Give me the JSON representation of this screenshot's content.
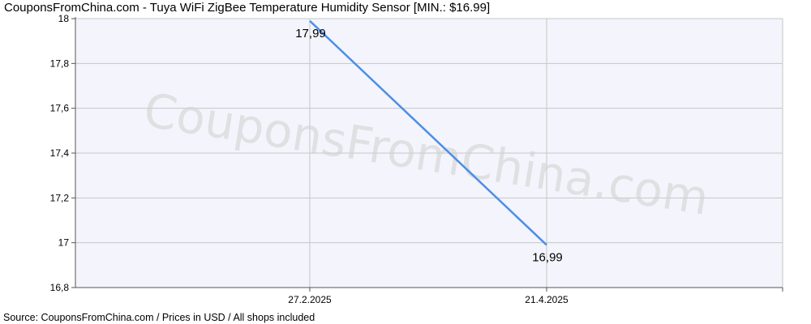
{
  "title": "CouponsFromChina.com - Tuya WiFi ZigBee Temperature Humidity Sensor [MIN.: $16.99]",
  "footer": "Source: CouponsFromChina.com / Prices in USD / All shops included",
  "watermark": "CouponsFromChina.com",
  "colors": {
    "line": "#4a8fe8",
    "plot_bg": "#f4f4fc",
    "grid": "#c6c6c6",
    "axis": "#555555"
  },
  "chart_data": {
    "type": "line",
    "title": "CouponsFromChina.com - Tuya WiFi ZigBee Temperature Humidity Sensor [MIN.: $16.99]",
    "xlabel": "",
    "ylabel": "",
    "grid": true,
    "legend": "none",
    "x_tick_labels": [
      "27.2.2025",
      "21.4.2025"
    ],
    "y_ticks": [
      16.8,
      17,
      17.2,
      17.4,
      17.6,
      17.8,
      18
    ],
    "y_tick_labels": [
      "16,8",
      "17",
      "17,2",
      "17,4",
      "17,6",
      "17,8",
      "18"
    ],
    "ylim": [
      16.8,
      18
    ],
    "series": [
      {
        "values": [
          17.99,
          16.99
        ],
        "point_labels": [
          "17,99",
          "16,99"
        ]
      }
    ]
  }
}
